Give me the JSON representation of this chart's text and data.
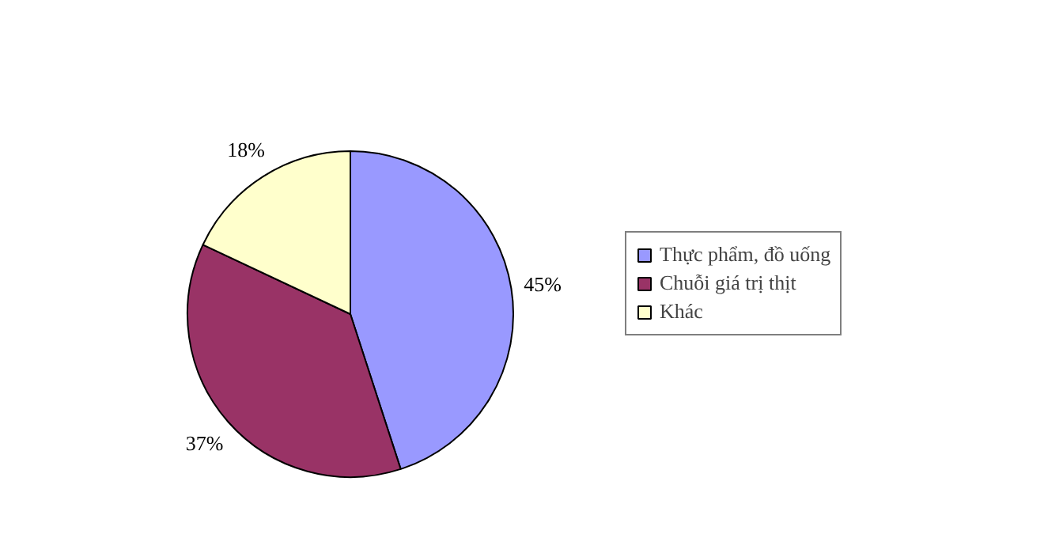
{
  "chart_data": {
    "type": "pie",
    "categories": [
      "Thực phẩm, đồ uống",
      "Chuỗi giá trị thịt",
      "Khác"
    ],
    "values": [
      45,
      37,
      18
    ],
    "value_labels": [
      "45%",
      "37%",
      "18%"
    ],
    "colors": [
      "#9999ff",
      "#993366",
      "#ffffcc"
    ],
    "legend": "right"
  }
}
